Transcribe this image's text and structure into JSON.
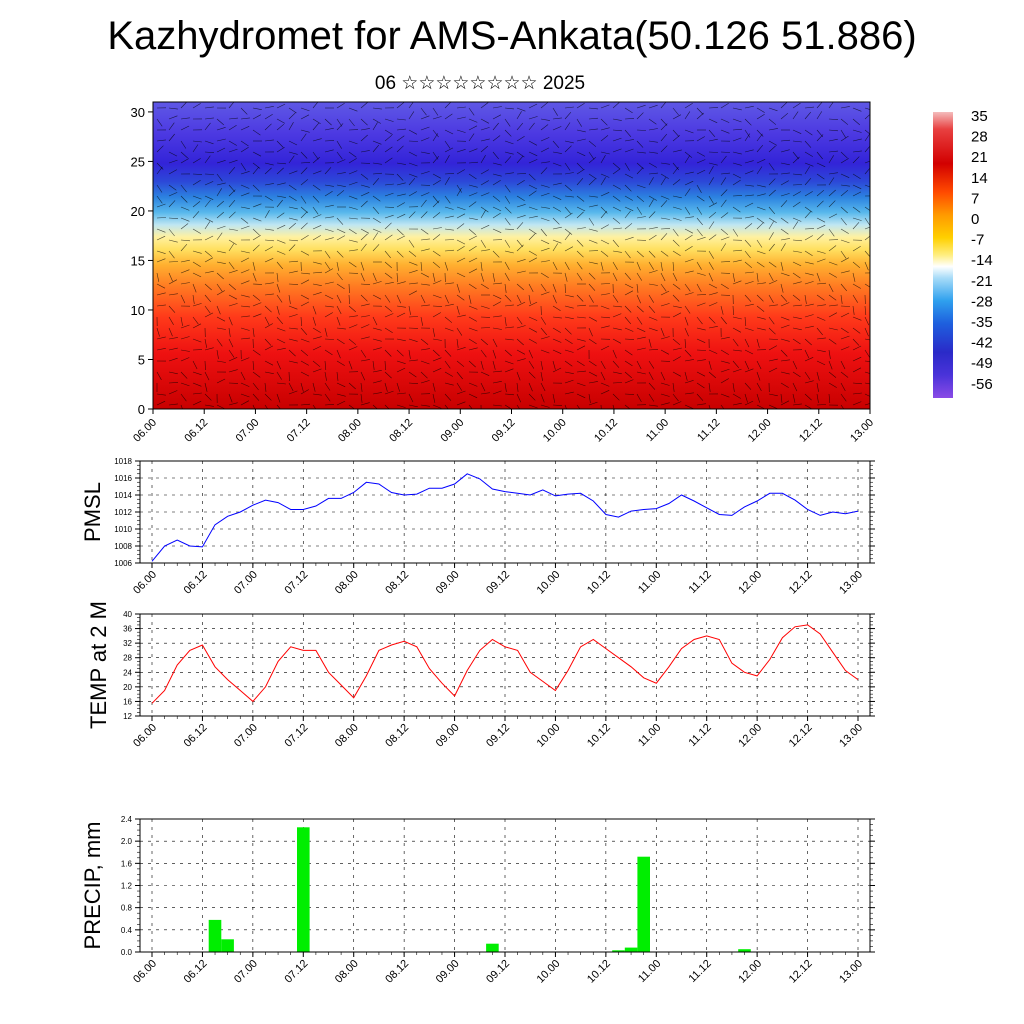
{
  "title": "Kazhydromet for AMS-Ankata(50.126 51.886)",
  "subtitle": "06 ☆☆☆☆☆☆☆☆ 2025",
  "colors": {
    "pmsl_line": "#0000ff",
    "temp_line": "#ff0000",
    "precip_bar": "#00ee00",
    "grid": "#000000"
  },
  "chart_data": [
    {
      "type": "heatmap",
      "name": "cross-section",
      "x_tick_labels": [
        "06.00",
        "06.12",
        "07.00",
        "07.12",
        "08.00",
        "08.12",
        "09.00",
        "09.12",
        "10.00",
        "10.12",
        "11.00",
        "11.12",
        "12.00",
        "12.12",
        "13.00"
      ],
      "y_tick_labels": [
        "0",
        "5",
        "10",
        "15",
        "20",
        "25",
        "30"
      ],
      "ylim": [
        0,
        31
      ],
      "colorbar_labels": [
        "35",
        "28",
        "21",
        "14",
        "7",
        "0",
        "-7",
        "-14",
        "-21",
        "-28",
        "-35",
        "-42",
        "-49",
        "-56"
      ],
      "colorbar_range": [
        -60,
        38
      ],
      "wind_barbs": true
    },
    {
      "type": "line",
      "ylabel": "PMSL",
      "ylim": [
        1006,
        1018
      ],
      "y_tick_labels": [
        "1006",
        "1008",
        "1010",
        "1012",
        "1014",
        "1016",
        "1018"
      ],
      "x_tick_labels": [
        "06.00",
        "06.12",
        "07.00",
        "07.12",
        "08.00",
        "08.12",
        "09.00",
        "09.12",
        "10.00",
        "10.12",
        "11.00",
        "11.12",
        "12.00",
        "12.12",
        "13.00"
      ],
      "x_hours": [
        0,
        3,
        6,
        9,
        12,
        15,
        18,
        21,
        24,
        27,
        30,
        33,
        36,
        39,
        42,
        45,
        48,
        51,
        54,
        57,
        60,
        63,
        66,
        69,
        72,
        75,
        78,
        81,
        84,
        87,
        90,
        93,
        96,
        99,
        102,
        105,
        108,
        111,
        114,
        117,
        120,
        123,
        126,
        129,
        132,
        135,
        138,
        141,
        144,
        147,
        150,
        153,
        156,
        159,
        162,
        165,
        168
      ],
      "values": [
        1006.2,
        1008.0,
        1008.7,
        1008.0,
        1007.9,
        1010.5,
        1011.5,
        1012.0,
        1012.8,
        1013.4,
        1013.1,
        1012.3,
        1012.3,
        1012.7,
        1013.6,
        1013.6,
        1014.3,
        1015.5,
        1015.3,
        1014.3,
        1014.0,
        1014.1,
        1014.8,
        1014.8,
        1015.3,
        1016.5,
        1015.9,
        1014.7,
        1014.4,
        1014.2,
        1014.0,
        1014.6,
        1013.9,
        1014.1,
        1014.2,
        1013.3,
        1011.7,
        1011.4,
        1012.1,
        1012.3,
        1012.4,
        1013.0,
        1014.0,
        1013.3,
        1012.5,
        1011.7,
        1011.6,
        1012.6,
        1013.3,
        1014.2,
        1014.2,
        1013.4,
        1012.3,
        1011.6,
        1012.0,
        1011.8,
        1012.1
      ],
      "grid": true
    },
    {
      "type": "line",
      "ylabel": "TEMP at 2 M",
      "ylim": [
        12,
        40
      ],
      "y_tick_labels": [
        "12",
        "16",
        "20",
        "24",
        "28",
        "32",
        "36",
        "40"
      ],
      "x_tick_labels": [
        "06.00",
        "06.12",
        "07.00",
        "07.12",
        "08.00",
        "08.12",
        "09.00",
        "09.12",
        "10.00",
        "10.12",
        "11.00",
        "11.12",
        "12.00",
        "12.12",
        "13.00"
      ],
      "x_hours": [
        0,
        3,
        6,
        9,
        12,
        15,
        18,
        21,
        24,
        27,
        30,
        33,
        36,
        39,
        42,
        45,
        48,
        51,
        54,
        57,
        60,
        63,
        66,
        69,
        72,
        75,
        78,
        81,
        84,
        87,
        90,
        93,
        96,
        99,
        102,
        105,
        108,
        111,
        114,
        117,
        120,
        123,
        126,
        129,
        132,
        135,
        138,
        141,
        144,
        147,
        150,
        153,
        156,
        159,
        162,
        165,
        168
      ],
      "values": [
        15.5,
        19.0,
        26.0,
        30.0,
        31.5,
        25.5,
        22.0,
        19.0,
        16.0,
        20.0,
        27.0,
        31.0,
        30.0,
        30.0,
        24.0,
        20.5,
        17.0,
        23.0,
        30.0,
        31.5,
        32.5,
        31.0,
        25.0,
        21.0,
        17.5,
        24.5,
        30.0,
        33.0,
        31.0,
        30.0,
        24.0,
        21.5,
        19.0,
        24.5,
        31.0,
        33.0,
        30.5,
        28.0,
        25.5,
        22.5,
        21.0,
        25.5,
        30.5,
        33.0,
        34.0,
        33.0,
        26.5,
        24.0,
        23.0,
        27.5,
        33.5,
        36.5,
        37.0,
        34.5,
        29.5,
        24.5,
        22.0
      ],
      "grid": true
    },
    {
      "type": "bar",
      "ylabel": "PRECIP, mm",
      "ylim": [
        0,
        2.4
      ],
      "y_tick_labels": [
        "0.0",
        "0.4",
        "0.8",
        "1.2",
        "1.6",
        "2.0",
        "2.4"
      ],
      "x_tick_labels": [
        "06.00",
        "06.12",
        "07.00",
        "07.12",
        "08.00",
        "08.12",
        "09.00",
        "09.12",
        "10.00",
        "10.12",
        "11.00",
        "11.12",
        "12.00",
        "12.12",
        "13.00"
      ],
      "x_hours": [
        15,
        18,
        36,
        81,
        111,
        114,
        117,
        141
      ],
      "values": [
        0.58,
        0.23,
        2.25,
        0.15,
        0.03,
        0.08,
        1.72,
        0.05
      ],
      "grid": true
    }
  ]
}
